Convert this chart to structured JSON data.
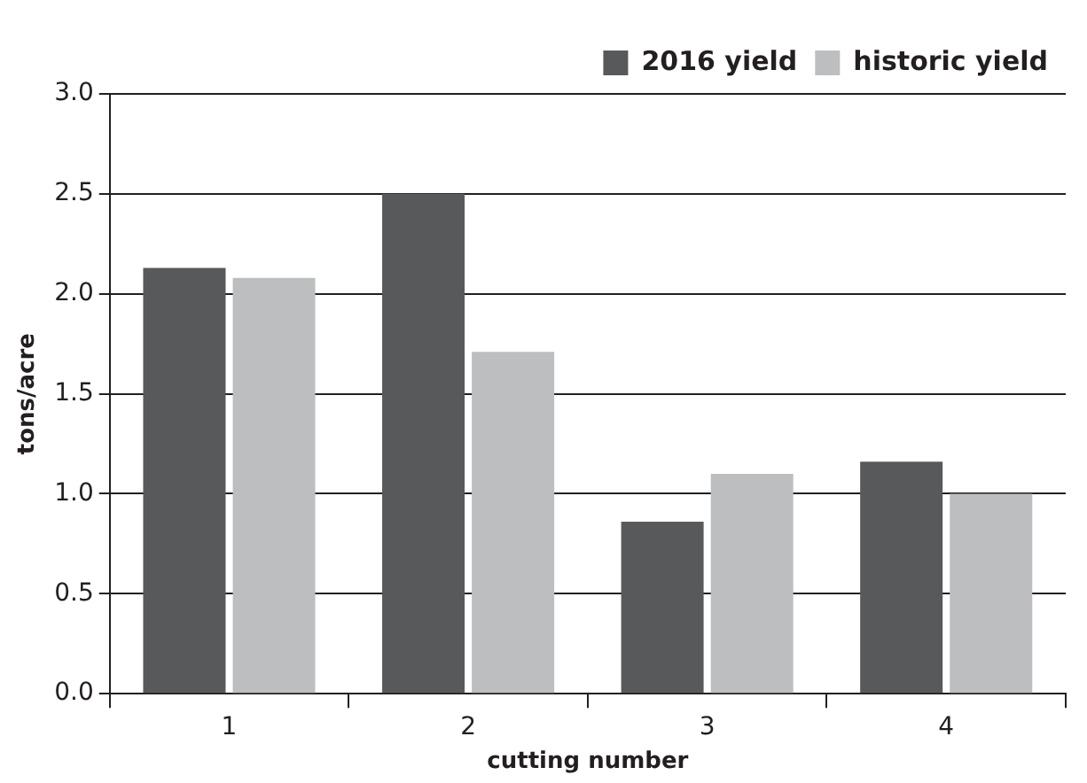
{
  "chart_data": {
    "type": "bar",
    "xlabel": "cutting number",
    "ylabel": "tons/acre",
    "categories": [
      "1",
      "2",
      "3",
      "4"
    ],
    "series": [
      {
        "name": "2016 yield",
        "color": "#58595b",
        "values": [
          2.13,
          2.5,
          0.86,
          1.16
        ]
      },
      {
        "name": "historic yield",
        "color": "#bcbec0",
        "values": [
          2.08,
          1.71,
          1.1,
          1.0
        ]
      }
    ],
    "ylim": [
      0,
      3
    ],
    "yticks": [
      {
        "value": 0,
        "label": "0.0"
      },
      {
        "value": 0.5,
        "label": "0.5"
      },
      {
        "value": 1,
        "label": "1.0"
      },
      {
        "value": 1.5,
        "label": "1.5"
      },
      {
        "value": 2,
        "label": "2.0"
      },
      {
        "value": 2.5,
        "label": "2.5"
      },
      {
        "value": 3,
        "label": "3.0"
      }
    ],
    "grid": "y",
    "legend": "top right"
  }
}
